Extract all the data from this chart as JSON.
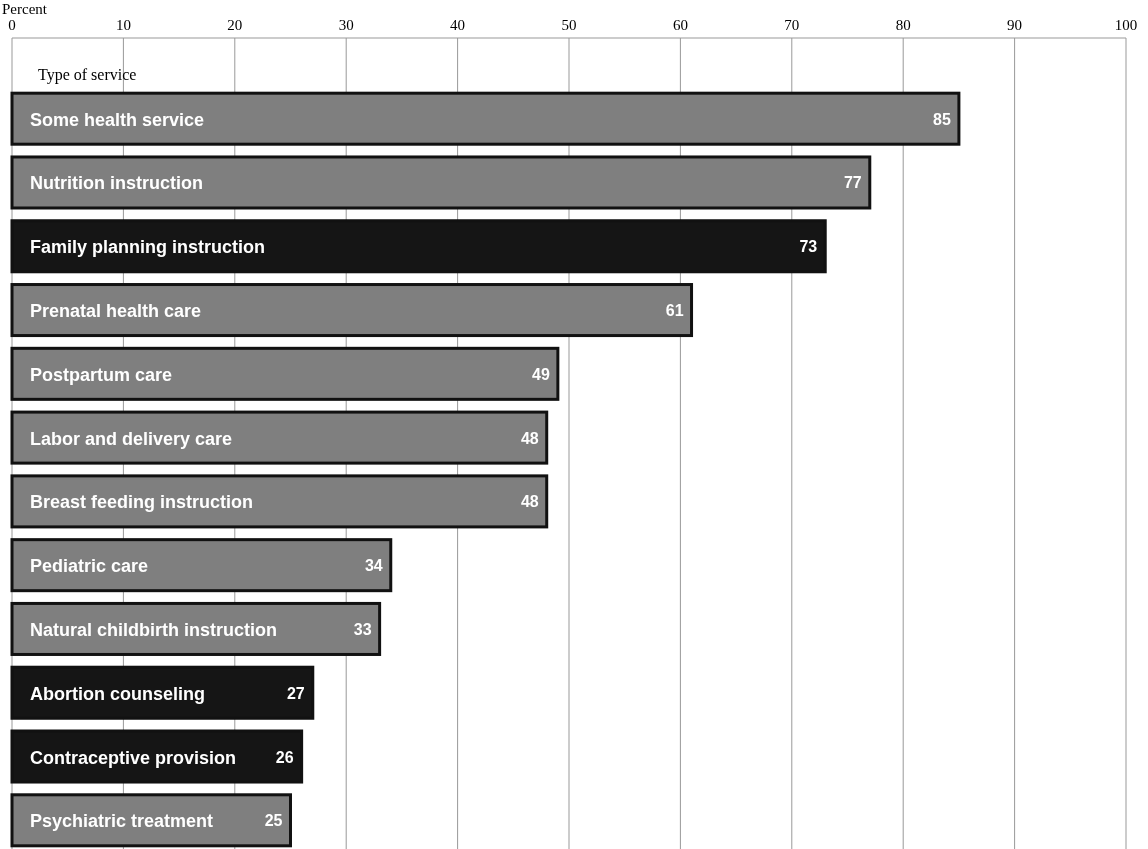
{
  "chart_data": {
    "type": "bar",
    "orientation": "horizontal",
    "xlabel": "Percent",
    "ylabel": "Type of service",
    "categories": [
      "Some health service",
      "Nutrition instruction",
      "Family planning instruction",
      "Prenatal health care",
      "Postpartum care",
      "Labor and delivery care",
      "Breast feeding instruction",
      "Pediatric care",
      "Natural childbirth instruction",
      "Abortion counseling",
      "Contraceptive provision",
      "Psychiatric treatment"
    ],
    "values": [
      85,
      77,
      73,
      61,
      49,
      48,
      48,
      34,
      33,
      27,
      26,
      25
    ],
    "colors": [
      "#7f7f7f",
      "#7f7f7f",
      "#151515",
      "#7f7f7f",
      "#7f7f7f",
      "#7f7f7f",
      "#7f7f7f",
      "#7f7f7f",
      "#7f7f7f",
      "#151515",
      "#151515",
      "#7f7f7f"
    ],
    "xlim": [
      0,
      100
    ],
    "xticks": [
      0,
      10,
      20,
      30,
      40,
      50,
      60,
      70,
      80,
      90,
      100
    ],
    "grid": "x",
    "data_labels": true
  }
}
